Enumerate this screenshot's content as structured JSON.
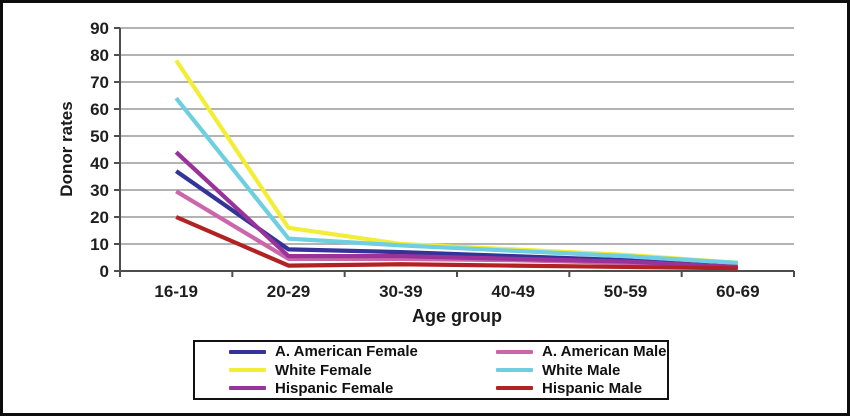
{
  "chart_data": {
    "type": "line",
    "title": "",
    "xlabel": "Age group",
    "ylabel": "Donor rates",
    "categories": [
      "16-19",
      "20-29",
      "30-39",
      "40-49",
      "50-59",
      "60-69"
    ],
    "ylim": [
      0,
      90
    ],
    "ytick_step": 10,
    "grid": "horizontal-only",
    "legend_position": "bottom",
    "legend_columns": 2,
    "series": [
      {
        "name": "A. American Female",
        "color": "#333399",
        "values": [
          37,
          8,
          7,
          5.5,
          4,
          1.5
        ]
      },
      {
        "name": "A. American Male",
        "color": "#CC66AA",
        "values": [
          29.5,
          4.5,
          4.5,
          4,
          3,
          1.5
        ]
      },
      {
        "name": "White Female",
        "color": "#F2EE35",
        "values": [
          78,
          16,
          10,
          8,
          6,
          3
        ]
      },
      {
        "name": "White Male",
        "color": "#6FCFE0",
        "values": [
          64,
          12,
          9.5,
          7.5,
          5.5,
          3
        ]
      },
      {
        "name": "Hispanic Female",
        "color": "#993399",
        "values": [
          44,
          5.5,
          5.5,
          4.5,
          3.5,
          1.5
        ]
      },
      {
        "name": "Hispanic Male",
        "color": "#B22222",
        "values": [
          20,
          2,
          2.5,
          2,
          1.5,
          1
        ]
      }
    ],
    "draw_order": [
      0,
      2,
      1,
      3,
      4,
      5
    ],
    "axis_color": "#4d4d4d",
    "grid_color": "#9a9a9a",
    "tick_label_color": "#1f1f1f"
  }
}
